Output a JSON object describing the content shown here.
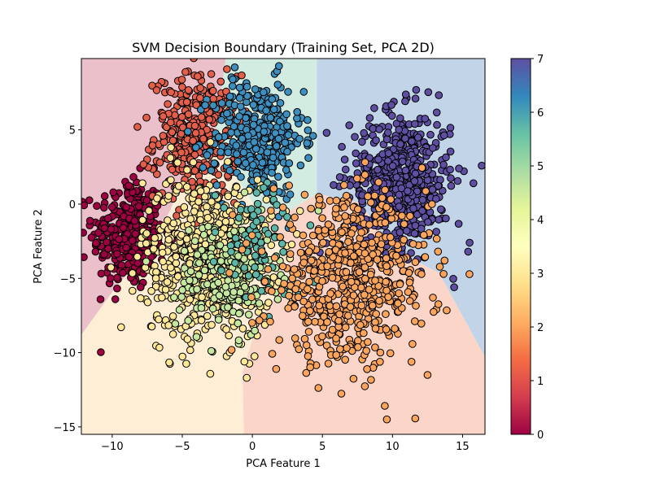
{
  "chart_data": {
    "type": "scatter",
    "title": "SVM Decision Boundary (Training Set, PCA 2D)",
    "xlabel": "PCA Feature 1",
    "ylabel": "PCA Feature 2",
    "xlim": [
      -12.2,
      16.6
    ],
    "ylim": [
      -15.5,
      9.8
    ],
    "x_ticks": [
      -10,
      -5,
      0,
      5,
      10,
      15
    ],
    "y_ticks": [
      -15,
      -10,
      -5,
      0,
      5
    ],
    "x_tick_labels": [
      "−10",
      "−5",
      "0",
      "5",
      "10",
      "15"
    ],
    "y_tick_labels": [
      "−15",
      "−10",
      "−5",
      "0",
      "5"
    ],
    "grid": false,
    "legend": "none",
    "colorbar": {
      "range": [
        0,
        7
      ],
      "ticks": [
        0,
        1,
        2,
        3,
        4,
        5,
        6,
        7
      ],
      "tick_labels": [
        "0",
        "1",
        "2",
        "3",
        "4",
        "5",
        "6",
        "7"
      ],
      "colormap": "Spectral"
    },
    "class_colors": {
      "0": "#9e0142",
      "1": "#e45f4a",
      "2": "#fba55c",
      "3": "#fee898",
      "4": "#c6e89e",
      "5": "#5cb7a9",
      "6": "#3d8fbf",
      "7": "#5e4fa2"
    },
    "region_colors": {
      "0": "#ebc0ca",
      "2": "#fad5c8",
      "3": "#fdeed5",
      "5": "#d3ece1",
      "7": "#c2d4e8"
    },
    "decision_regions": [
      {
        "class": 0,
        "polygon": [
          [
            -12.2,
            9.8
          ],
          [
            -1.9,
            9.8
          ],
          [
            -2.7,
            4.2
          ],
          [
            -4.8,
            2.2
          ],
          [
            -5.8,
            -0.3
          ],
          [
            -7.3,
            -3.2
          ],
          [
            -9.6,
            -5.4
          ],
          [
            -12.2,
            -8.8
          ]
        ]
      },
      {
        "class": 5,
        "polygon": [
          [
            -1.9,
            9.8
          ],
          [
            4.6,
            9.8
          ],
          [
            4.6,
            0.7
          ],
          [
            2.4,
            -0.6
          ],
          [
            0.2,
            -0.2
          ],
          [
            -2.7,
            4.2
          ]
        ]
      },
      {
        "class": 7,
        "polygon": [
          [
            4.6,
            9.8
          ],
          [
            16.6,
            9.8
          ],
          [
            16.6,
            -10.3
          ],
          [
            13.3,
            -4.6
          ],
          [
            10.0,
            -3.1
          ],
          [
            7.7,
            0.1
          ],
          [
            4.6,
            0.7
          ]
        ]
      },
      {
        "class": 3,
        "polygon": [
          [
            -12.2,
            -8.8
          ],
          [
            -9.6,
            -5.4
          ],
          [
            -7.3,
            -3.2
          ],
          [
            -5.8,
            -0.3
          ],
          [
            -4.8,
            2.2
          ],
          [
            -2.7,
            4.2
          ],
          [
            0.2,
            -0.2
          ],
          [
            1.6,
            -2.2
          ],
          [
            2.8,
            -4.5
          ],
          [
            0.3,
            -8.2
          ],
          [
            -0.7,
            -11.3
          ],
          [
            -0.6,
            -15.5
          ],
          [
            -12.2,
            -15.5
          ]
        ]
      },
      {
        "class": 2,
        "polygon": [
          [
            -0.6,
            -15.5
          ],
          [
            16.6,
            -15.5
          ],
          [
            16.6,
            -10.3
          ],
          [
            13.3,
            -4.6
          ],
          [
            10.0,
            -3.1
          ],
          [
            7.7,
            0.1
          ],
          [
            4.6,
            0.7
          ],
          [
            2.4,
            -0.6
          ],
          [
            0.2,
            -0.2
          ],
          [
            1.6,
            -2.2
          ],
          [
            2.8,
            -4.5
          ],
          [
            0.3,
            -8.2
          ],
          [
            -0.7,
            -11.3
          ]
        ]
      }
    ],
    "clusters": [
      {
        "class": 0,
        "center": [
          -8.8,
          -2.0
        ],
        "spread": [
          1.3,
          1.9
        ],
        "count": 320
      },
      {
        "class": 1,
        "center": [
          -4.0,
          4.5
        ],
        "spread": [
          1.5,
          2.1
        ],
        "count": 340
      },
      {
        "class": 6,
        "center": [
          0.4,
          4.4
        ],
        "spread": [
          1.6,
          2.0
        ],
        "count": 360
      },
      {
        "class": 7,
        "center": [
          10.6,
          1.6
        ],
        "spread": [
          1.8,
          2.3
        ],
        "count": 560
      },
      {
        "class": 3,
        "center": [
          -3.2,
          -3.6
        ],
        "spread": [
          2.3,
          2.7
        ],
        "count": 620
      },
      {
        "class": 4,
        "center": [
          -1.8,
          -4.8
        ],
        "spread": [
          1.8,
          2.0
        ],
        "count": 180
      },
      {
        "class": 5,
        "center": [
          0.6,
          -2.6
        ],
        "spread": [
          1.5,
          2.0
        ],
        "count": 80
      },
      {
        "class": 2,
        "center": [
          7.0,
          -5.2
        ],
        "spread": [
          2.8,
          2.7
        ],
        "count": 640
      }
    ],
    "points": [
      {
        "class": 7,
        "x": 15.5,
        "y": -2.6
      },
      {
        "class": 7,
        "x": 15.4,
        "y": -3.2
      },
      {
        "class": 7,
        "x": 14.4,
        "y": -5.6
      },
      {
        "class": 2,
        "x": 9.6,
        "y": -14.5
      },
      {
        "class": 2,
        "x": 12.5,
        "y": -11.5
      },
      {
        "class": 3,
        "x": -0.4,
        "y": -11.7
      },
      {
        "class": 2,
        "x": 1.7,
        "y": -11.1
      },
      {
        "class": 6,
        "x": 3.2,
        "y": 6.2
      },
      {
        "class": 6,
        "x": 3.9,
        "y": 4.1
      },
      {
        "class": 1,
        "x": -8.2,
        "y": 5.2
      },
      {
        "class": 1,
        "x": -3.9,
        "y": 8.6
      },
      {
        "class": 6,
        "x": -1.4,
        "y": 8.4
      },
      {
        "class": 7,
        "x": 5.3,
        "y": 4.8
      },
      {
        "class": 2,
        "x": 4.8,
        "y": 0.3
      }
    ]
  }
}
